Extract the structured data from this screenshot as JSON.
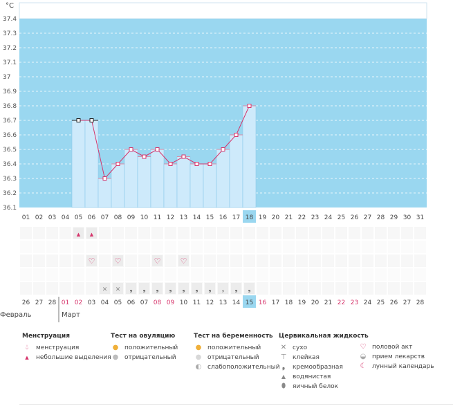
{
  "chart_data": {
    "type": "line",
    "unit_label": "°C",
    "ylim": [
      36.1,
      37.4
    ],
    "y_ticks": [
      "37.4",
      "37.3",
      "37.2",
      "37.1",
      "37",
      "36.9",
      "36.8",
      "36.7",
      "36.6",
      "36.5",
      "36.4",
      "36.3",
      "36.2",
      "36.1"
    ],
    "categories": [
      "01",
      "02",
      "03",
      "04",
      "05",
      "06",
      "07",
      "08",
      "09",
      "10",
      "11",
      "12",
      "13",
      "14",
      "15",
      "16",
      "17",
      "18",
      "19",
      "20",
      "21",
      "22",
      "23",
      "24",
      "25",
      "26",
      "27",
      "28",
      "29",
      "30",
      "31"
    ],
    "highlighted_day": "18",
    "series": [
      {
        "values": [
          null,
          null,
          null,
          null,
          36.7,
          36.7,
          36.3,
          36.4,
          36.5,
          36.45,
          36.5,
          36.4,
          36.45,
          36.4,
          36.4,
          36.5,
          36.6,
          36.8,
          null,
          null,
          null,
          null,
          null,
          null,
          null,
          null,
          null,
          null,
          null,
          null,
          null
        ],
        "marker_types": [
          null,
          null,
          null,
          null,
          "black",
          "black",
          "pink",
          "pink",
          "pink",
          "pink",
          "pink",
          "pink",
          "pink",
          "pink",
          "pink",
          "pink",
          "pink",
          "pink",
          null,
          null,
          null,
          null,
          null,
          null,
          null,
          null,
          null,
          null,
          null,
          null,
          null
        ]
      }
    ],
    "markers": {
      "menstruation_light": [
        "05",
        "06"
      ],
      "intercourse": [
        "06",
        "08",
        "11",
        "13"
      ],
      "cervical_dry": [
        "07",
        "08"
      ],
      "cervical_creamy": [
        "09",
        "10",
        "11",
        "12",
        "13",
        "14",
        "15",
        "17",
        "18"
      ],
      "cervical_watery": [
        "16"
      ]
    },
    "calendar_dates": [
      "26",
      "27",
      "28",
      "01",
      "02",
      "03",
      "04",
      "05",
      "06",
      "07",
      "08",
      "09",
      "10",
      "11",
      "12",
      "13",
      "14",
      "15",
      "16",
      "17",
      "18",
      "19",
      "20",
      "21",
      "22",
      "23",
      "24",
      "25",
      "26",
      "27",
      "28"
    ],
    "calendar_red": [
      "01",
      "02",
      "08",
      "09",
      "16",
      "22",
      "23"
    ],
    "calendar_highlight": "15",
    "months": [
      "Февраль",
      "Март"
    ],
    "grid": true
  },
  "legend": {
    "menstruation": {
      "title": "Менструация",
      "items": [
        {
          "icon": "drop-large-icon",
          "label": "менструация"
        },
        {
          "icon": "drop-small-icon",
          "label": "небольшие выделения"
        }
      ]
    },
    "ovulation_test": {
      "title": "Тест на овуляцию",
      "items": [
        {
          "icon": "positive-circle-icon",
          "label": "положительный"
        },
        {
          "icon": "negative-circle-icon",
          "label": "отрицательный"
        }
      ]
    },
    "pregnancy_test": {
      "title": "Тест на беременность",
      "items": [
        {
          "icon": "positive-circle-icon",
          "label": "положительный"
        },
        {
          "icon": "negative-circle-icon",
          "label": "отрицательный"
        },
        {
          "icon": "weak-circle-icon",
          "label": "слабоположительный"
        }
      ]
    },
    "cervical": {
      "title": "Цервикальная жидкость",
      "items": [
        {
          "icon": "x-icon",
          "label": "сухо"
        },
        {
          "icon": "sticky-icon",
          "label": "клейкая"
        },
        {
          "icon": "creamy-icon",
          "label": "кремообразная"
        },
        {
          "icon": "watery-icon",
          "label": "водянистая"
        },
        {
          "icon": "eggwhite-icon",
          "label": "яичный белок"
        }
      ]
    },
    "other": {
      "items": [
        {
          "icon": "heart-icon",
          "label": "половой акт"
        },
        {
          "icon": "pill-icon",
          "label": "прием лекарств"
        },
        {
          "icon": "moon-icon",
          "label": "лунный календарь"
        }
      ]
    }
  },
  "colors": {
    "background_area": "#9ad7f0",
    "bar_fill": "#ceeafb",
    "bar_stroke": "#8ec9ea",
    "line": "#d6346b",
    "highlight_day": "#9ad7f0",
    "red_date": "#d6346b"
  }
}
